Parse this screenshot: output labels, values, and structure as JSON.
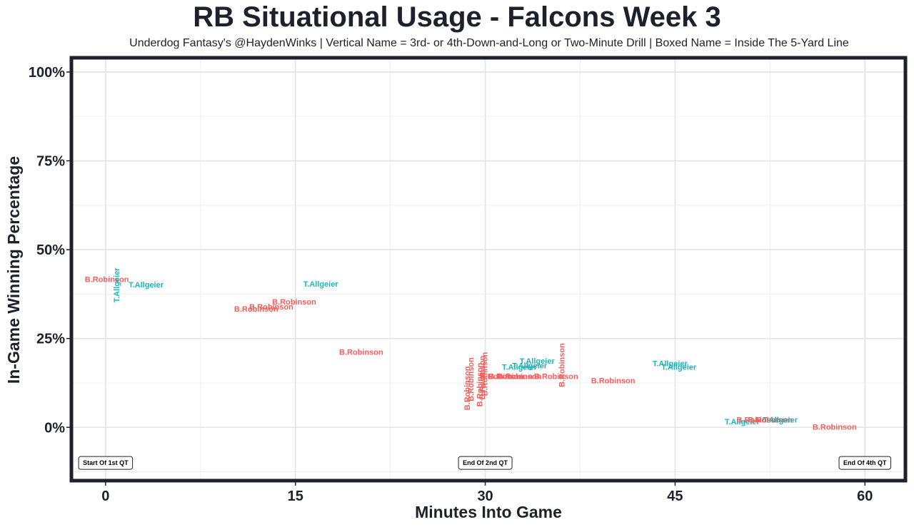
{
  "chart_data": {
    "type": "scatter",
    "title": "RB Situational Usage - Falcons Week 3",
    "subtitle": "Underdog Fantasy's @HaydenWinks | Vertical Name = 3rd- or 4th-Down-and-Long or Two-Minute Drill | Boxed Name = Inside The 5-Yard Line",
    "xlabel": "Minutes Into Game",
    "ylabel": "In-Game Winning Percentage",
    "xlim": [
      -2.7,
      63.2
    ],
    "ylim": [
      -15,
      104
    ],
    "x_ticks": [
      0,
      15,
      30,
      45,
      60
    ],
    "x_tick_labels": [
      "0",
      "15",
      "30",
      "45",
      "60"
    ],
    "y_ticks": [
      0,
      25,
      50,
      75,
      100
    ],
    "y_tick_labels": [
      "0%",
      "25%",
      "50%",
      "75%",
      "100%"
    ],
    "grid": true,
    "colors": {
      "B.Robinson": "#f0605d",
      "T.Allgeier": "#1fb5b8",
      "frame": "#1d212b"
    },
    "points": [
      {
        "x": 0.1,
        "y": 41.5,
        "name": "B.Robinson",
        "vertical": false
      },
      {
        "x": 0.9,
        "y": 40.0,
        "name": "T.Allgeier",
        "vertical": true
      },
      {
        "x": 3.2,
        "y": 40.0,
        "name": "T.Allgeier",
        "vertical": false
      },
      {
        "x": 17.0,
        "y": 40.2,
        "name": "T.Allgeier",
        "vertical": false
      },
      {
        "x": 14.9,
        "y": 35.2,
        "name": "B.Robinson",
        "vertical": false
      },
      {
        "x": 13.1,
        "y": 33.8,
        "name": "B.Robinson",
        "vertical": false
      },
      {
        "x": 11.9,
        "y": 33.2,
        "name": "B.Robinson",
        "vertical": false
      },
      {
        "x": 20.2,
        "y": 21.0,
        "name": "B.Robinson",
        "vertical": false
      },
      {
        "x": 28.6,
        "y": 11.0,
        "name": "B.Robinson",
        "vertical": true
      },
      {
        "x": 28.9,
        "y": 13.5,
        "name": "B.Robinson",
        "vertical": true
      },
      {
        "x": 29.6,
        "y": 12.0,
        "name": "B.Robinson",
        "vertical": true
      },
      {
        "x": 29.8,
        "y": 14.0,
        "name": "B.Robinson",
        "vertical": true
      },
      {
        "x": 30.0,
        "y": 15.0,
        "name": "B.Robinson",
        "vertical": true
      },
      {
        "x": 31.3,
        "y": 14.2,
        "name": "B.Robinson",
        "vertical": false
      },
      {
        "x": 32.0,
        "y": 14.2,
        "name": "B.Robinson",
        "vertical": false
      },
      {
        "x": 32.7,
        "y": 14.2,
        "name": "B.Robinson",
        "vertical": false
      },
      {
        "x": 35.6,
        "y": 14.2,
        "name": "B.Robinson",
        "vertical": false
      },
      {
        "x": 34.1,
        "y": 18.5,
        "name": "T.Allgeier",
        "vertical": false
      },
      {
        "x": 33.5,
        "y": 17.2,
        "name": "T.Allgeier",
        "vertical": false
      },
      {
        "x": 32.7,
        "y": 16.8,
        "name": "T.Allgeier",
        "vertical": false
      },
      {
        "x": 36.1,
        "y": 17.5,
        "name": "B.Robinson",
        "vertical": true
      },
      {
        "x": 40.1,
        "y": 13.0,
        "name": "B.Robinson",
        "vertical": false
      },
      {
        "x": 44.6,
        "y": 17.8,
        "name": "T.Allgeier",
        "vertical": false
      },
      {
        "x": 45.3,
        "y": 16.8,
        "name": "T.Allgeier",
        "vertical": false
      },
      {
        "x": 50.3,
        "y": 1.5,
        "name": "T.Allgeier",
        "vertical": false
      },
      {
        "x": 51.6,
        "y": 2.0,
        "name": "B.Robinson",
        "vertical": false
      },
      {
        "x": 52.5,
        "y": 2.0,
        "name": "B.Robinson",
        "vertical": false
      },
      {
        "x": 53.3,
        "y": 2.0,
        "name": "T.Allgeier",
        "vertical": false
      },
      {
        "x": 57.6,
        "y": 0.0,
        "name": "B.Robinson",
        "vertical": false
      }
    ],
    "quarter_markers": [
      {
        "x": 0,
        "label": "Start Of 1st QT"
      },
      {
        "x": 30,
        "label": "End Of 2nd QT"
      },
      {
        "x": 60,
        "label": "End Of 4th QT"
      }
    ]
  }
}
